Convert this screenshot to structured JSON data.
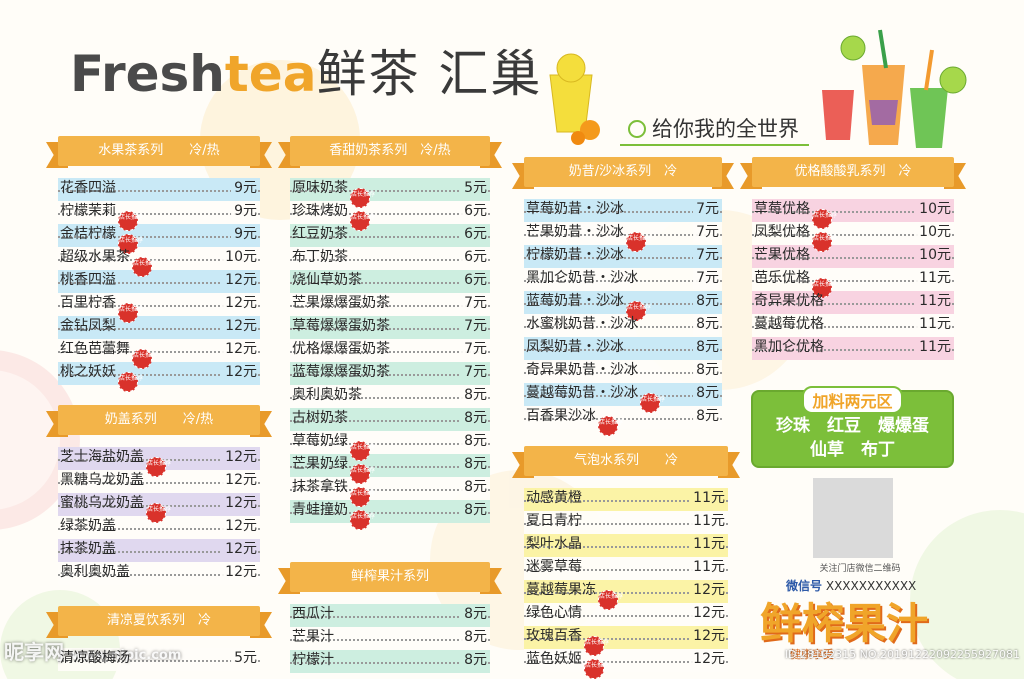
{
  "header": {
    "brand_en_1": "Fresh",
    "brand_en_2": "tea",
    "brand_cn": "鲜茶 汇巢",
    "slogan": "给你我的全世界"
  },
  "badge_text": "店长推荐",
  "colors": {
    "banner": "#f3b449",
    "accent_green": "#7cbf3a",
    "badge_red": "#d9322b",
    "row_blue": "#c9e9f6",
    "row_teal": "#cdeee0",
    "row_lavender": "#e0d8ef",
    "row_pink": "#f8d3e1",
    "row_yellow": "#fbf3a6"
  },
  "sections": {
    "fruit_tea": {
      "title": "水果茶系列　　冷/热",
      "items": [
        {
          "name": "花香四溢",
          "price": "9元",
          "rec": false
        },
        {
          "name": "柠檬茉莉",
          "price": "9元",
          "rec": true
        },
        {
          "name": "金桔柠檬",
          "price": "9元",
          "rec": true
        },
        {
          "name": "超级水果茶",
          "price": "10元",
          "rec": true
        },
        {
          "name": "桃香四溢",
          "price": "12元",
          "rec": false
        },
        {
          "name": "百里柠香",
          "price": "12元",
          "rec": true
        },
        {
          "name": "金钻凤梨",
          "price": "12元",
          "rec": false
        },
        {
          "name": "红色芭蕾舞",
          "price": "12元",
          "rec": true
        },
        {
          "name": "桃之妖妖",
          "price": "12元",
          "rec": true
        }
      ]
    },
    "cheese_foam": {
      "title": "奶盖系列　　冷/热",
      "items": [
        {
          "name": "芝士海盐奶盖",
          "price": "12元",
          "rec": true
        },
        {
          "name": "黑糖乌龙奶盖",
          "price": "12元",
          "rec": false
        },
        {
          "name": "蜜桃乌龙奶盖",
          "price": "12元",
          "rec": true
        },
        {
          "name": "绿茶奶盖",
          "price": "12元",
          "rec": false
        },
        {
          "name": "抹茶奶盖",
          "price": "12元",
          "rec": false
        },
        {
          "name": "奥利奥奶盖",
          "price": "12元",
          "rec": false
        }
      ]
    },
    "summer_drinks": {
      "title": "清凉夏饮系列　冷",
      "items": [
        {
          "name": "清凉酸梅汤",
          "price": "5元",
          "rec": false
        }
      ]
    },
    "milk_tea": {
      "title": "香甜奶茶系列　冷/热",
      "items": [
        {
          "name": "原味奶茶",
          "price": "5元",
          "rec": true
        },
        {
          "name": "珍珠烤奶",
          "price": "6元",
          "rec": true
        },
        {
          "name": "红豆奶茶",
          "price": "6元",
          "rec": false
        },
        {
          "name": "布丁奶茶",
          "price": "6元",
          "rec": false
        },
        {
          "name": "烧仙草奶茶",
          "price": "6元",
          "rec": false
        },
        {
          "name": "芒果爆爆蛋奶茶",
          "price": "7元",
          "rec": false
        },
        {
          "name": "草莓爆爆蛋奶茶",
          "price": "7元",
          "rec": false
        },
        {
          "name": "优格爆爆蛋奶茶",
          "price": "7元",
          "rec": false
        },
        {
          "name": "蓝莓爆爆蛋奶茶",
          "price": "7元",
          "rec": false
        },
        {
          "name": "奥利奥奶茶",
          "price": "8元",
          "rec": false
        },
        {
          "name": "古树奶茶",
          "price": "8元",
          "rec": false
        },
        {
          "name": "草莓奶绿",
          "price": "8元",
          "rec": true
        },
        {
          "name": "芒果奶绿",
          "price": "8元",
          "rec": true
        },
        {
          "name": "抹茶拿铁",
          "price": "8元",
          "rec": true
        },
        {
          "name": "青蛙撞奶",
          "price": "8元",
          "rec": true
        }
      ]
    },
    "fresh_juice": {
      "title": "鲜榨果汁系列",
      "items": [
        {
          "name": "西瓜汁",
          "price": "8元",
          "rec": false
        },
        {
          "name": "芒果汁",
          "price": "8元",
          "rec": false
        },
        {
          "name": "柠檬汁",
          "price": "8元",
          "rec": false
        }
      ]
    },
    "shake_smoothie": {
      "title": "奶昔/沙冰系列　冷",
      "items": [
        {
          "name": "草莓奶昔・沙冰",
          "price": "7元",
          "rec": false
        },
        {
          "name": "芒果奶昔・沙冰",
          "price": "7元",
          "rec": true
        },
        {
          "name": "柠檬奶昔・沙冰",
          "price": "7元",
          "rec": false
        },
        {
          "name": "黑加仑奶昔・沙冰",
          "price": "7元",
          "rec": false
        },
        {
          "name": "蓝莓奶昔・沙冰",
          "price": "8元",
          "rec": true
        },
        {
          "name": "水蜜桃奶昔・沙冰",
          "price": "8元",
          "rec": false
        },
        {
          "name": "凤梨奶昔・沙冰",
          "price": "8元",
          "rec": false
        },
        {
          "name": "奇异果奶昔・沙冰",
          "price": "8元",
          "rec": false
        },
        {
          "name": "蔓越莓奶昔・沙冰",
          "price": "8元",
          "rec": true
        },
        {
          "name": "百香果沙冰",
          "price": "8元",
          "rec": true
        }
      ]
    },
    "sparkling": {
      "title": "气泡水系列　　冷",
      "items": [
        {
          "name": "动感黄橙",
          "price": "11元",
          "rec": false
        },
        {
          "name": "夏日青柠",
          "price": "11元",
          "rec": false
        },
        {
          "name": "梨叶水晶",
          "price": "11元",
          "rec": false
        },
        {
          "name": "迷雾草莓",
          "price": "11元",
          "rec": false
        },
        {
          "name": "蔓越莓果冻",
          "price": "12元",
          "rec": true
        },
        {
          "name": "绿色心情",
          "price": "12元",
          "rec": false
        },
        {
          "name": "玫瑰百香",
          "price": "12元",
          "rec": true
        },
        {
          "name": "蓝色妖姬",
          "price": "12元",
          "rec": true
        }
      ]
    },
    "yogurt": {
      "title": "优格酸酸乳系列　冷",
      "items": [
        {
          "name": "草莓优格",
          "price": "10元",
          "rec": true
        },
        {
          "name": "凤梨优格",
          "price": "10元",
          "rec": true
        },
        {
          "name": "芒果优格",
          "price": "10元",
          "rec": false
        },
        {
          "name": "芭乐优格",
          "price": "11元",
          "rec": true
        },
        {
          "name": "奇异果优格",
          "price": "11元",
          "rec": false
        },
        {
          "name": "蔓越莓优格",
          "price": "11元",
          "rec": false
        },
        {
          "name": "黑加仑优格",
          "price": "11元",
          "rec": false
        }
      ]
    }
  },
  "addon": {
    "title": "加料两元区",
    "line1": "珍珠　红豆　爆爆蛋",
    "line2": "仙草　布丁"
  },
  "contact": {
    "qr_caption": "关注门店微信二维码",
    "wechat_label": "微信号",
    "wechat_value": "XXXXXXXXXXX"
  },
  "bottom_brand": {
    "title": "鲜榨果汁",
    "sub": "健康享受"
  },
  "watermark": {
    "left_main": "昵享网",
    "left_url": "www.nipic.com",
    "right": "ID:28102315 NO:20191222092255927081"
  }
}
